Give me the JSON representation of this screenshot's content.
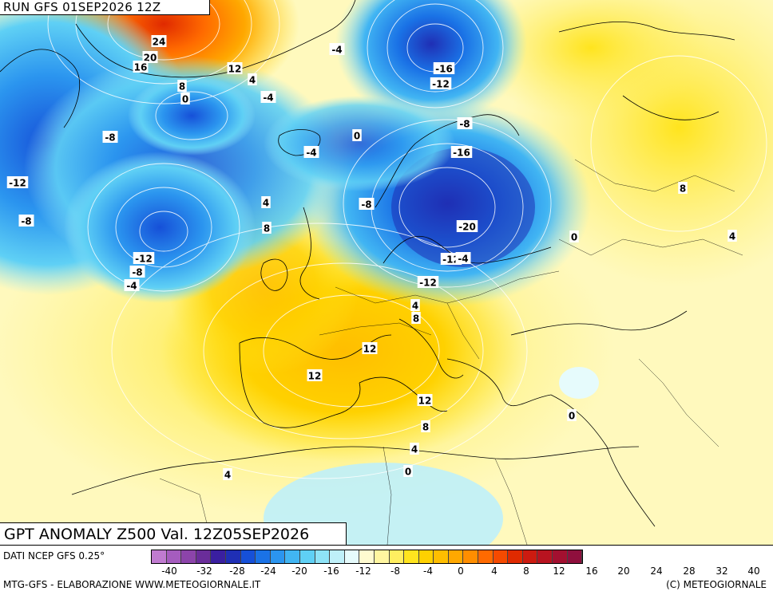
{
  "header": {
    "run_title": "RUN GFS 01SEP2026 12Z"
  },
  "map": {
    "title": "GPT ANOMALY Z500 Val. 12Z05SEP2026",
    "contour_labels": [
      "24",
      "20",
      "16",
      "12",
      "8",
      "4",
      "0",
      "-8",
      "-4",
      "-4",
      "-12",
      "-8",
      "-4",
      "-12",
      "-8",
      "-4",
      "0",
      "4",
      "8",
      "-8",
      "-16",
      "-12",
      "-8",
      "-16",
      "-12",
      "-20",
      "-12",
      "-4",
      "0",
      "8",
      "4",
      "4",
      "8",
      "12",
      "12",
      "12",
      "8",
      "4",
      "0",
      "0",
      "4"
    ]
  },
  "legend": {
    "source": "DATI NCEP GFS 0.25°",
    "ticks": [
      "-40",
      "-32",
      "-28",
      "-24",
      "-20",
      "-16",
      "-12",
      "-8",
      "-4",
      "0",
      "4",
      "8",
      "12",
      "16",
      "20",
      "24",
      "28",
      "32",
      "40"
    ],
    "colors": [
      "#c07bd0",
      "#a55cbe",
      "#8c44aa",
      "#6a2d9a",
      "#3a1fa0",
      "#1f2fb5",
      "#1650d8",
      "#1a72e6",
      "#2b95ef",
      "#41b5f3",
      "#5fd0f5",
      "#8ee3f7",
      "#bff0f9",
      "#e6fbfc",
      "#fffbd0",
      "#fff6a0",
      "#ffee60",
      "#ffe41e",
      "#ffd100",
      "#ffbe00",
      "#ffa800",
      "#ff8e00",
      "#ff6a00",
      "#f54a00",
      "#e02a00",
      "#cc1b10",
      "#b81320",
      "#a31030",
      "#8f0f3d"
    ]
  },
  "footer": {
    "left": "MTG-GFS - ELABORAZIONE WWW.METEOGIORNALE.IT",
    "right": "(C) METEOGIORNALE"
  }
}
